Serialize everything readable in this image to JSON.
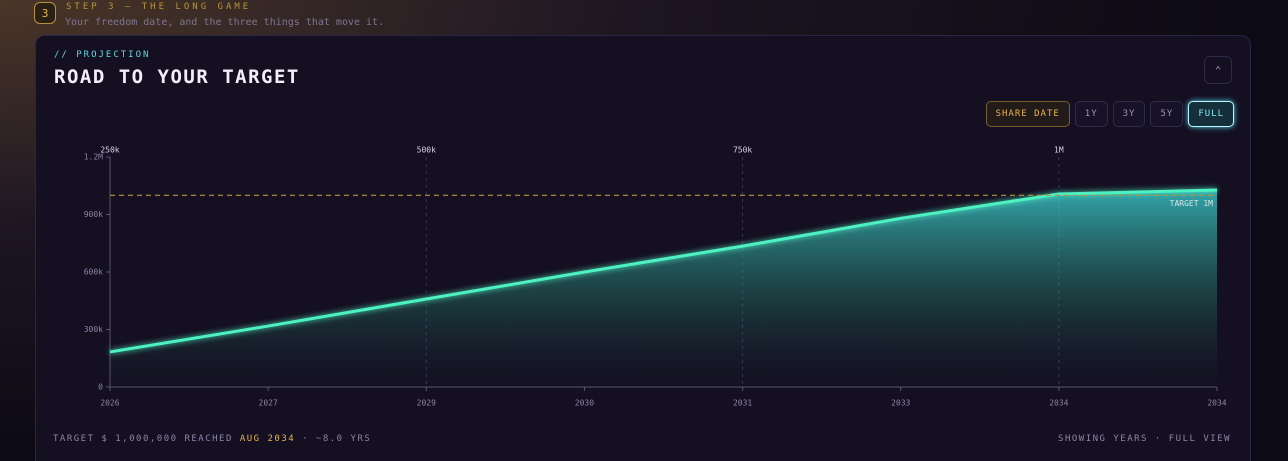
{
  "header": {
    "badge": "3",
    "step": "STEP 3 — THE LONG GAME",
    "subtitle": "Your freedom date, and the three things that move it."
  },
  "card": {
    "eyebrow": "// PROJECTION",
    "title": "ROAD TO YOUR TARGET",
    "buttons": [
      {
        "label": "SHARE DATE",
        "active": false
      },
      {
        "label": "1Y",
        "active": false
      },
      {
        "label": "3Y",
        "active": false
      },
      {
        "label": "5Y",
        "active": false
      },
      {
        "label": "FULL",
        "active": true
      }
    ]
  },
  "chart_data": {
    "type": "line",
    "categories": [
      "2026",
      "2027",
      "2029",
      "2030",
      "2031",
      "2033",
      "2034",
      "2034"
    ],
    "milestones": [
      "250k",
      null,
      "500k",
      null,
      "750k",
      null,
      "1M",
      null
    ],
    "values": [
      183000,
      318000,
      459000,
      600000,
      735000,
      880000,
      1007000,
      1028000
    ],
    "color": "#4ef2c2",
    "ylim": [
      0,
      1200000
    ],
    "yticks": [
      0,
      {
        "value": 300000,
        "label": "300k"
      },
      {
        "value": 600000,
        "label": "600k"
      },
      {
        "value": 900000,
        "label": "900k"
      },
      {
        "value": 1200000,
        "label": "1.2M"
      }
    ],
    "target": {
      "value": 1000000,
      "label": "TARGET 1M",
      "color": "#b8923a"
    }
  },
  "footer": {
    "prefix": "TARGET $ 1,000,000 REACHED",
    "date": "AUG 2034",
    "suffix": "· ~8.0 YRS",
    "view": "SHOWING YEARS · FULL VIEW"
  }
}
